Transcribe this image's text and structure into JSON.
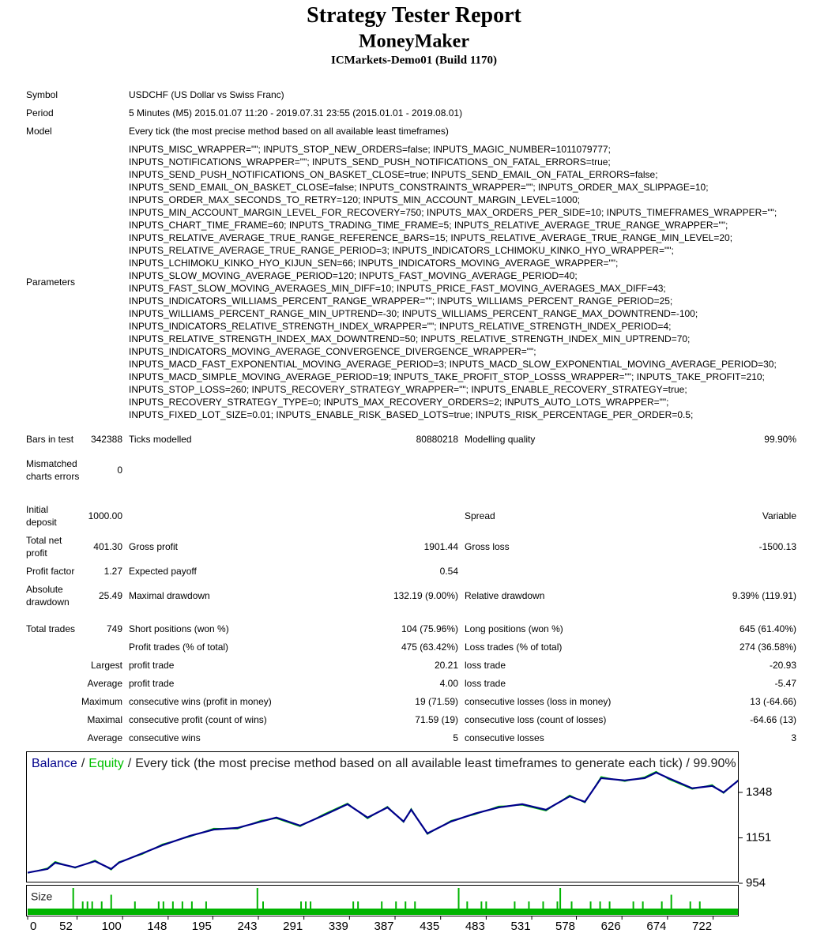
{
  "header": {
    "title": "Strategy Tester Report",
    "name": "MoneyMaker",
    "server": "ICMarkets-Demo01 (Build 1170)"
  },
  "info": [
    {
      "label": "Symbol",
      "value": "USDCHF (US Dollar vs Swiss Franc)"
    },
    {
      "label": "Period",
      "value": "5 Minutes (M5) 2015.01.07 11:20 - 2019.07.31 23:55 (2015.01.01 - 2019.08.01)"
    },
    {
      "label": "Model",
      "value": "Every tick (the most precise method based on all available least timeframes)"
    }
  ],
  "parameters": {
    "label": "Parameters",
    "lines": [
      "INPUTS_MISC_WRAPPER=\"\"; INPUTS_STOP_NEW_ORDERS=false; INPUTS_MAGIC_NUMBER=1011079777;",
      "INPUTS_NOTIFICATIONS_WRAPPER=\"\"; INPUTS_SEND_PUSH_NOTIFICATIONS_ON_FATAL_ERRORS=true;",
      "INPUTS_SEND_PUSH_NOTIFICATIONS_ON_BASKET_CLOSE=true; INPUTS_SEND_EMAIL_ON_FATAL_ERRORS=false;",
      "INPUTS_SEND_EMAIL_ON_BASKET_CLOSE=false; INPUTS_CONSTRAINTS_WRAPPER=\"\"; INPUTS_ORDER_MAX_SLIPPAGE=10;",
      "INPUTS_ORDER_MAX_SECONDS_TO_RETRY=120; INPUTS_MIN_ACCOUNT_MARGIN_LEVEL=1000;",
      "INPUTS_MIN_ACCOUNT_MARGIN_LEVEL_FOR_RECOVERY=750; INPUTS_MAX_ORDERS_PER_SIDE=10; INPUTS_TIMEFRAMES_WRAPPER=\"\";",
      "INPUTS_CHART_TIME_FRAME=60; INPUTS_TRADING_TIME_FRAME=5; INPUTS_RELATIVE_AVERAGE_TRUE_RANGE_WRAPPER=\"\";",
      "INPUTS_RELATIVE_AVERAGE_TRUE_RANGE_REFERENCE_BARS=15; INPUTS_RELATIVE_AVERAGE_TRUE_RANGE_MIN_LEVEL=20;",
      "INPUTS_RELATIVE_AVERAGE_TRUE_RANGE_PERIOD=3; INPUTS_INDICATORS_LCHIMOKU_KINKO_HYO_WRAPPER=\"\";",
      "INPUTS_LCHIMOKU_KINKO_HYO_KIJUN_SEN=66; INPUTS_INDICATORS_MOVING_AVERAGE_WRAPPER=\"\";",
      "INPUTS_SLOW_MOVING_AVERAGE_PERIOD=120; INPUTS_FAST_MOVING_AVERAGE_PERIOD=40;",
      "INPUTS_FAST_SLOW_MOVING_AVERAGES_MIN_DIFF=10; INPUTS_PRICE_FAST_MOVING_AVERAGES_MAX_DIFF=43;",
      "INPUTS_INDICATORS_WILLIAMS_PERCENT_RANGE_WRAPPER=\"\"; INPUTS_WILLIAMS_PERCENT_RANGE_PERIOD=25;",
      "INPUTS_WILLIAMS_PERCENT_RANGE_MIN_UPTREND=-30; INPUTS_WILLIAMS_PERCENT_RANGE_MAX_DOWNTREND=-100;",
      "INPUTS_INDICATORS_RELATIVE_STRENGTH_INDEX_WRAPPER=\"\"; INPUTS_RELATIVE_STRENGTH_INDEX_PERIOD=4;",
      "INPUTS_RELATIVE_STRENGTH_INDEX_MAX_DOWNTREND=50; INPUTS_RELATIVE_STRENGTH_INDEX_MIN_UPTREND=70;",
      "INPUTS_INDICATORS_MOVING_AVERAGE_CONVERGENCE_DIVERGENCE_WRAPPER=\"\";",
      "INPUTS_MACD_FAST_EXPONENTIAL_MOVING_AVERAGE_PERIOD=3; INPUTS_MACD_SLOW_EXPONENTIAL_MOVING_AVERAGE_PERIOD=30;",
      "INPUTS_MACD_SIMPLE_MOVING_AVERAGE_PERIOD=19; INPUTS_TAKE_PROFIT_STOP_LOSSS_WRAPPER=\"\"; INPUTS_TAKE_PROFIT=210;",
      "INPUTS_STOP_LOSS=260; INPUTS_RECOVERY_STRATEGY_WRAPPER=\"\"; INPUTS_ENABLE_RECOVERY_STRATEGY=true;",
      "INPUTS_RECOVERY_STRATEGY_TYPE=0; INPUTS_MAX_RECOVERY_ORDERS=2; INPUTS_AUTO_LOTS_WRAPPER=\"\";",
      "INPUTS_FIXED_LOT_SIZE=0.01; INPUTS_ENABLE_RISK_BASED_LOTS=true; INPUTS_RISK_PERCENTAGE_PER_ORDER=0.5;"
    ]
  },
  "stats": {
    "rows": [
      [
        "Bars in test",
        "342388",
        "Ticks modelled",
        "80880218",
        "Modelling quality",
        "99.90%"
      ],
      [
        "Mismatched charts errors",
        "0",
        null,
        null,
        null,
        null
      ],
      [
        "Initial deposit",
        "1000.00",
        null,
        null,
        "Spread",
        "Variable"
      ],
      [
        "Total net profit",
        "401.30",
        "Gross profit",
        "1901.44",
        "Gross loss",
        "-1500.13"
      ],
      [
        "Profit factor",
        "1.27",
        "Expected payoff",
        "0.54",
        null,
        null
      ],
      [
        "Absolute drawdown",
        "25.49",
        "Maximal drawdown",
        "132.19 (9.00%)",
        "Relative drawdown",
        "9.39% (119.91)"
      ],
      [
        "Total trades",
        "749",
        "Short positions (won %)",
        "104 (75.96%)",
        "Long positions (won %)",
        "645 (61.40%)"
      ],
      [
        null,
        null,
        "Profit trades (% of total)",
        "475 (63.42%)",
        "Loss trades (% of total)",
        "274 (36.58%)"
      ],
      [
        null,
        "Largest",
        "profit trade",
        "20.21",
        "loss trade",
        "-20.93"
      ],
      [
        null,
        "Average",
        "profit trade",
        "4.00",
        "loss trade",
        "-5.47"
      ],
      [
        null,
        "Maximum",
        "consecutive wins (profit in money)",
        "19 (71.59)",
        "consecutive losses (loss in money)",
        "13 (-64.66)"
      ],
      [
        null,
        "Maximal",
        "consecutive profit (count of wins)",
        "71.59 (19)",
        "consecutive loss (count of losses)",
        "-64.66 (13)"
      ],
      [
        null,
        "Average",
        "consecutive wins",
        "5",
        "consecutive losses",
        "3"
      ]
    ]
  },
  "chart_data": {
    "type": "line",
    "legend_separator": "/",
    "caption": "Every tick (the most precise method based on all available least timeframes to generate each tick) / 99.90%",
    "x": [
      0,
      21,
      29,
      50,
      71,
      88,
      96,
      121,
      142,
      171,
      196,
      221,
      246,
      262,
      287,
      312,
      337,
      358,
      379,
      396,
      404,
      421,
      446,
      471,
      496,
      521,
      546,
      571,
      587,
      604,
      629,
      650,
      662,
      675,
      700,
      721,
      733,
      749
    ],
    "series": [
      {
        "name": "Balance",
        "color": "#00008b",
        "values": [
          1000,
          1016,
          1043,
          1023,
          1050,
          1016,
          1043,
          1084,
          1119,
          1160,
          1187,
          1194,
          1222,
          1239,
          1204,
          1249,
          1297,
          1239,
          1283,
          1222,
          1273,
          1170,
          1222,
          1256,
          1283,
          1297,
          1273,
          1331,
          1307,
          1410,
          1400,
          1410,
          1434,
          1410,
          1366,
          1376,
          1348,
          1401
        ]
      },
      {
        "name": "Equity",
        "color": "#00c000",
        "values": [
          998,
          1020,
          1048,
          1020,
          1054,
          1012,
          1047,
          1080,
          1124,
          1156,
          1192,
          1190,
          1227,
          1235,
          1200,
          1254,
          1301,
          1234,
          1287,
          1218,
          1278,
          1166,
          1226,
          1252,
          1288,
          1293,
          1268,
          1336,
          1303,
          1416,
          1396,
          1415,
          1439,
          1405,
          1362,
          1381,
          1344,
          1404
        ]
      }
    ],
    "xlim": [
      0,
      749
    ],
    "ylim": [
      954,
      1524
    ],
    "xticks": [
      0,
      52,
      100,
      148,
      195,
      243,
      291,
      339,
      387,
      435,
      483,
      531,
      578,
      626,
      674,
      722
    ],
    "yticks": [
      954,
      1151,
      1348
    ],
    "size": {
      "name": "Size",
      "color": "#00b400",
      "ylim": [
        0,
        0.04
      ],
      "x": [
        48,
        58,
        63,
        68,
        78,
        88,
        113,
        138,
        143,
        153,
        163,
        173,
        188,
        242,
        248,
        288,
        293,
        298,
        343,
        348,
        373,
        388,
        398,
        408,
        454,
        463,
        478,
        483,
        513,
        528,
        543,
        558,
        561,
        573,
        593,
        603,
        613,
        638,
        648,
        668,
        678,
        698,
        708
      ],
      "values": [
        0.04,
        0.02,
        0.02,
        0.02,
        0.02,
        0.03,
        0.02,
        0.02,
        0.02,
        0.02,
        0.02,
        0.02,
        0.02,
        0.04,
        0.02,
        0.02,
        0.02,
        0.02,
        0.02,
        0.02,
        0.02,
        0.02,
        0.02,
        0.02,
        0.04,
        0.02,
        0.02,
        0.02,
        0.02,
        0.02,
        0.02,
        0.02,
        0.04,
        0.02,
        0.02,
        0.02,
        0.02,
        0.02,
        0.02,
        0.02,
        0.03,
        0.02,
        0.02
      ]
    }
  }
}
